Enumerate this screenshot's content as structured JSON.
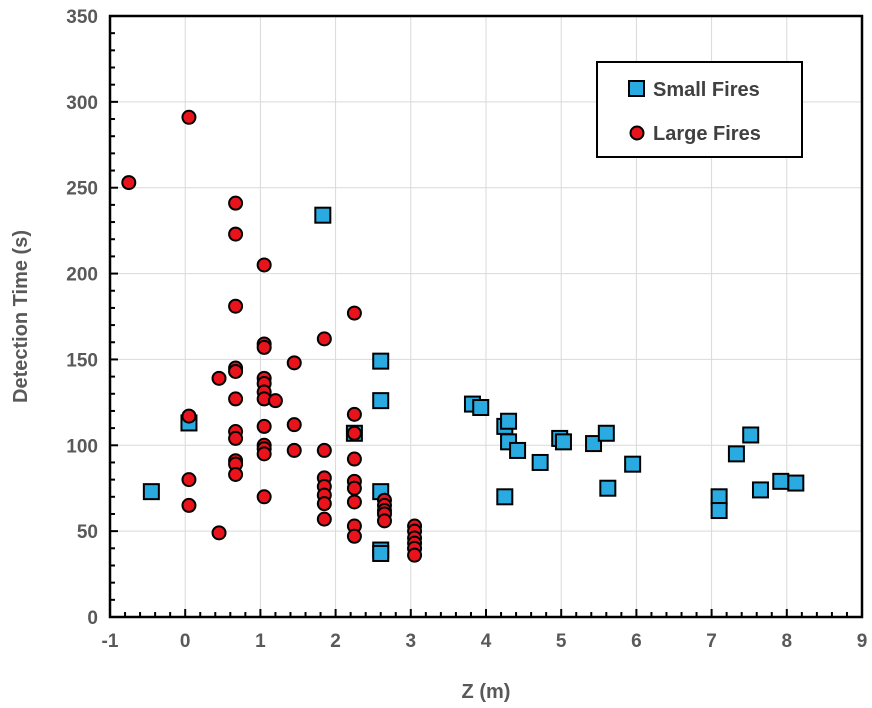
{
  "chart_data": {
    "type": "scatter",
    "xlabel": "Z (m)",
    "ylabel": "Detection Time (s)",
    "xlim": [
      -1,
      9
    ],
    "ylim": [
      0,
      350
    ],
    "xticks": [
      -1,
      0,
      1,
      2,
      3,
      4,
      5,
      6,
      7,
      8,
      9
    ],
    "yticks": [
      0,
      50,
      100,
      150,
      200,
      250,
      300,
      350
    ],
    "grid": true,
    "legend_position": "top-right",
    "series": [
      {
        "name": "Small Fires",
        "marker": "square",
        "color": "#29ABE2",
        "points": [
          [
            -0.45,
            73
          ],
          [
            0.05,
            113
          ],
          [
            1.83,
            234
          ],
          [
            2.25,
            107
          ],
          [
            2.6,
            149
          ],
          [
            2.6,
            126
          ],
          [
            2.6,
            73
          ],
          [
            2.6,
            39
          ],
          [
            2.6,
            37
          ],
          [
            3.82,
            124
          ],
          [
            3.93,
            122
          ],
          [
            4.25,
            111
          ],
          [
            4.3,
            114
          ],
          [
            4.3,
            102
          ],
          [
            4.42,
            97
          ],
          [
            4.25,
            70
          ],
          [
            4.72,
            90
          ],
          [
            4.98,
            104
          ],
          [
            5.03,
            102
          ],
          [
            5.43,
            101
          ],
          [
            5.6,
            107
          ],
          [
            5.62,
            75
          ],
          [
            5.95,
            89
          ],
          [
            7.1,
            70
          ],
          [
            7.1,
            62
          ],
          [
            7.33,
            95
          ],
          [
            7.52,
            106
          ],
          [
            7.65,
            74
          ],
          [
            7.92,
            79
          ],
          [
            8.12,
            78
          ]
        ]
      },
      {
        "name": "Large Fires",
        "marker": "circle",
        "color": "#E8131B",
        "points": [
          [
            -0.75,
            253
          ],
          [
            0.05,
            291
          ],
          [
            0.05,
            117
          ],
          [
            0.05,
            80
          ],
          [
            0.05,
            65
          ],
          [
            0.45,
            139
          ],
          [
            0.45,
            49
          ],
          [
            0.67,
            241
          ],
          [
            0.67,
            223
          ],
          [
            0.67,
            181
          ],
          [
            0.67,
            145
          ],
          [
            0.67,
            143
          ],
          [
            0.67,
            127
          ],
          [
            0.67,
            108
          ],
          [
            0.67,
            104
          ],
          [
            0.67,
            91
          ],
          [
            0.67,
            89
          ],
          [
            0.67,
            83
          ],
          [
            1.05,
            205
          ],
          [
            1.05,
            159
          ],
          [
            1.05,
            157
          ],
          [
            1.05,
            139
          ],
          [
            1.05,
            136
          ],
          [
            1.05,
            131
          ],
          [
            1.05,
            127
          ],
          [
            1.05,
            111
          ],
          [
            1.05,
            100
          ],
          [
            1.05,
            98
          ],
          [
            1.05,
            95
          ],
          [
            1.05,
            70
          ],
          [
            1.2,
            126
          ],
          [
            1.45,
            148
          ],
          [
            1.45,
            112
          ],
          [
            1.45,
            97
          ],
          [
            1.85,
            162
          ],
          [
            1.85,
            97
          ],
          [
            1.85,
            81
          ],
          [
            1.85,
            76
          ],
          [
            1.85,
            71
          ],
          [
            1.85,
            66
          ],
          [
            1.85,
            57
          ],
          [
            2.25,
            177
          ],
          [
            2.25,
            118
          ],
          [
            2.25,
            107
          ],
          [
            2.25,
            92
          ],
          [
            2.25,
            79
          ],
          [
            2.25,
            75
          ],
          [
            2.25,
            67
          ],
          [
            2.25,
            53
          ],
          [
            2.25,
            47
          ],
          [
            2.65,
            68
          ],
          [
            2.65,
            65
          ],
          [
            2.65,
            62
          ],
          [
            2.65,
            60
          ],
          [
            2.65,
            56
          ],
          [
            3.05,
            53
          ],
          [
            3.05,
            50
          ],
          [
            3.05,
            46
          ],
          [
            3.05,
            43
          ],
          [
            3.05,
            40
          ],
          [
            3.05,
            36
          ]
        ]
      }
    ]
  }
}
